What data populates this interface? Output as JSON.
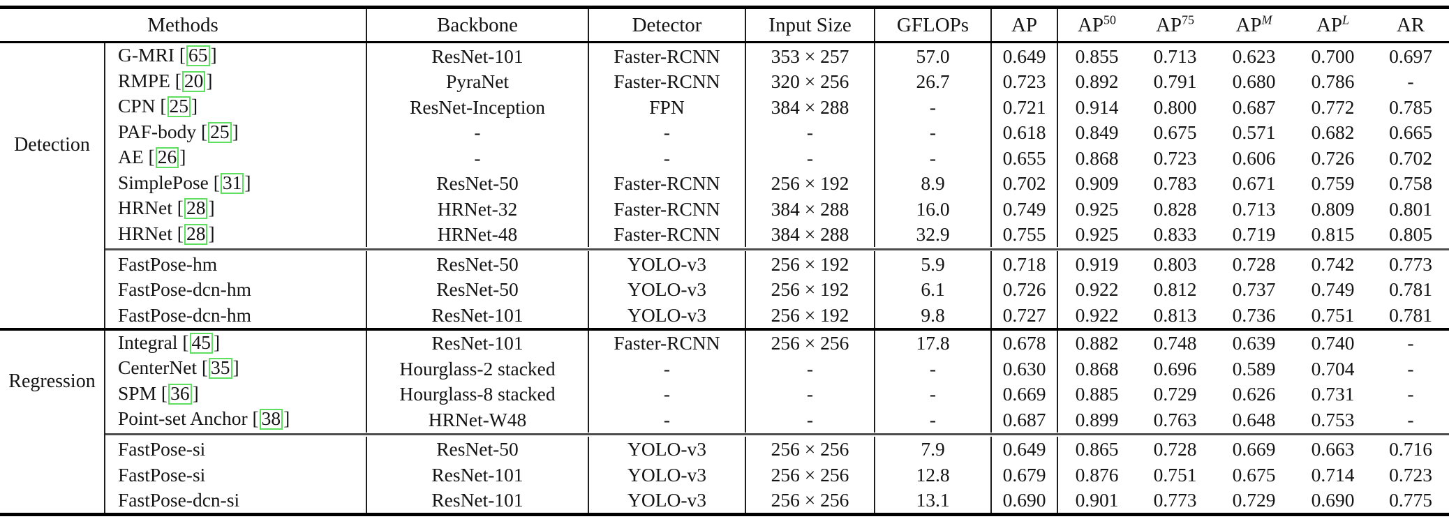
{
  "page": {
    "background": "#ffffff",
    "text_color": "#141414",
    "citation_box_color": "#5fdf5f",
    "rule_color": "#000000"
  },
  "table": {
    "columns": [
      {
        "key": "group",
        "label": ""
      },
      {
        "key": "methods",
        "label": "Methods"
      },
      {
        "key": "backbone",
        "label": "Backbone"
      },
      {
        "key": "detector",
        "label": "Detector"
      },
      {
        "key": "input_size",
        "label": "Input Size"
      },
      {
        "key": "gflops",
        "label": "GFLOPs"
      },
      {
        "key": "ap",
        "label": "AP"
      },
      {
        "key": "ap50",
        "label": "AP",
        "sup": "50",
        "sup_italic": false
      },
      {
        "key": "ap75",
        "label": "AP",
        "sup": "75",
        "sup_italic": false
      },
      {
        "key": "apm",
        "label": "AP",
        "sup": "M",
        "sup_italic": true
      },
      {
        "key": "apl",
        "label": "AP",
        "sup": "L",
        "sup_italic": true
      },
      {
        "key": "ar",
        "label": "AR"
      }
    ],
    "sections": [
      {
        "label": "Detection",
        "blocks": [
          {
            "rows": [
              {
                "method": "G-MRI",
                "cite": "65",
                "backbone": "ResNet-101",
                "detector": "Faster-RCNN",
                "input_size": "353 × 257",
                "gflops": "57.0",
                "ap": "0.649",
                "ap50": "0.855",
                "ap75": "0.713",
                "apm": "0.623",
                "apl": "0.700",
                "ar": "0.697"
              },
              {
                "method": "RMPE",
                "cite": "20",
                "backbone": "PyraNet",
                "detector": "Faster-RCNN",
                "input_size": "320 × 256",
                "gflops": "26.7",
                "ap": "0.723",
                "ap50": "0.892",
                "ap75": "0.791",
                "apm": "0.680",
                "apl": "0.786",
                "ar": "-"
              },
              {
                "method": "CPN",
                "cite": "25",
                "backbone": "ResNet-Inception",
                "detector": "FPN",
                "input_size": "384 × 288",
                "gflops": "-",
                "ap": "0.721",
                "ap50": "0.914",
                "ap75": "0.800",
                "apm": "0.687",
                "apl": "0.772",
                "ar": "0.785"
              },
              {
                "method": "PAF-body",
                "cite": "25",
                "backbone": "-",
                "detector": "-",
                "input_size": "-",
                "gflops": "-",
                "ap": "0.618",
                "ap50": "0.849",
                "ap75": "0.675",
                "apm": "0.571",
                "apl": "0.682",
                "ar": "0.665"
              },
              {
                "method": "AE",
                "cite": "26",
                "backbone": "-",
                "detector": "-",
                "input_size": "-",
                "gflops": "-",
                "ap": "0.655",
                "ap50": "0.868",
                "ap75": "0.723",
                "apm": "0.606",
                "apl": "0.726",
                "ar": "0.702"
              },
              {
                "method": "SimplePose",
                "cite": "31",
                "backbone": "ResNet-50",
                "detector": "Faster-RCNN",
                "input_size": "256 × 192",
                "gflops": "8.9",
                "ap": "0.702",
                "ap50": "0.909",
                "ap75": "0.783",
                "apm": "0.671",
                "apl": "0.759",
                "ar": "0.758"
              },
              {
                "method": "HRNet",
                "cite": "28",
                "backbone": "HRNet-32",
                "detector": "Faster-RCNN",
                "input_size": "384 × 288",
                "gflops": "16.0",
                "ap": "0.749",
                "ap50": "0.925",
                "ap75": "0.828",
                "apm": "0.713",
                "apl": "0.809",
                "ar": "0.801"
              },
              {
                "method": "HRNet",
                "cite": "28",
                "backbone": "HRNet-48",
                "detector": "Faster-RCNN",
                "input_size": "384 × 288",
                "gflops": "32.9",
                "ap": "0.755",
                "ap50": "0.925",
                "ap75": "0.833",
                "apm": "0.719",
                "apl": "0.815",
                "ar": "0.805"
              }
            ]
          },
          {
            "rows": [
              {
                "method": "FastPose-hm",
                "cite": null,
                "backbone": "ResNet-50",
                "detector": "YOLO-v3",
                "input_size": "256 × 192",
                "gflops": "5.9",
                "ap": "0.718",
                "ap50": "0.919",
                "ap75": "0.803",
                "apm": "0.728",
                "apl": "0.742",
                "ar": "0.773"
              },
              {
                "method": "FastPose-dcn-hm",
                "cite": null,
                "backbone": "ResNet-50",
                "detector": "YOLO-v3",
                "input_size": "256 × 192",
                "gflops": "6.1",
                "ap": "0.726",
                "ap50": "0.922",
                "ap75": "0.812",
                "apm": "0.737",
                "apl": "0.749",
                "ar": "0.781"
              },
              {
                "method": "FastPose-dcn-hm",
                "cite": null,
                "backbone": "ResNet-101",
                "detector": "YOLO-v3",
                "input_size": "256 × 192",
                "gflops": "9.8",
                "ap": "0.727",
                "ap50": "0.922",
                "ap75": "0.813",
                "apm": "0.736",
                "apl": "0.751",
                "ar": "0.781"
              }
            ]
          }
        ]
      },
      {
        "label": "Regression",
        "blocks": [
          {
            "rows": [
              {
                "method": "Integral",
                "cite": "45",
                "backbone": "ResNet-101",
                "detector": "Faster-RCNN",
                "input_size": "256 × 256",
                "gflops": "17.8",
                "ap": "0.678",
                "ap50": "0.882",
                "ap75": "0.748",
                "apm": "0.639",
                "apl": "0.740",
                "ar": "-"
              },
              {
                "method": "CenterNet",
                "cite": "35",
                "backbone": "Hourglass-2 stacked",
                "detector": "-",
                "input_size": "-",
                "gflops": "-",
                "ap": "0.630",
                "ap50": "0.868",
                "ap75": "0.696",
                "apm": "0.589",
                "apl": "0.704",
                "ar": "-"
              },
              {
                "method": "SPM",
                "cite": "36",
                "backbone": "Hourglass-8 stacked",
                "detector": "-",
                "input_size": "-",
                "gflops": "-",
                "ap": "0.669",
                "ap50": "0.885",
                "ap75": "0.729",
                "apm": "0.626",
                "apl": "0.731",
                "ar": "-"
              },
              {
                "method": "Point-set Anchor",
                "cite": "38",
                "backbone": "HRNet-W48",
                "detector": "-",
                "input_size": "-",
                "gflops": "-",
                "ap": "0.687",
                "ap50": "0.899",
                "ap75": "0.763",
                "apm": "0.648",
                "apl": "0.753",
                "ar": "-"
              }
            ]
          },
          {
            "rows": [
              {
                "method": "FastPose-si",
                "cite": null,
                "backbone": "ResNet-50",
                "detector": "YOLO-v3",
                "input_size": "256 × 256",
                "gflops": "7.9",
                "ap": "0.649",
                "ap50": "0.865",
                "ap75": "0.728",
                "apm": "0.669",
                "apl": "0.663",
                "ar": "0.716"
              },
              {
                "method": "FastPose-si",
                "cite": null,
                "backbone": "ResNet-101",
                "detector": "YOLO-v3",
                "input_size": "256 × 256",
                "gflops": "12.8",
                "ap": "0.679",
                "ap50": "0.876",
                "ap75": "0.751",
                "apm": "0.675",
                "apl": "0.714",
                "ar": "0.723"
              },
              {
                "method": "FastPose-dcn-si",
                "cite": null,
                "backbone": "ResNet-101",
                "detector": "YOLO-v3",
                "input_size": "256 × 256",
                "gflops": "13.1",
                "ap": "0.690",
                "ap50": "0.901",
                "ap75": "0.773",
                "apm": "0.729",
                "apl": "0.690",
                "ar": "0.775"
              }
            ]
          }
        ]
      }
    ]
  }
}
